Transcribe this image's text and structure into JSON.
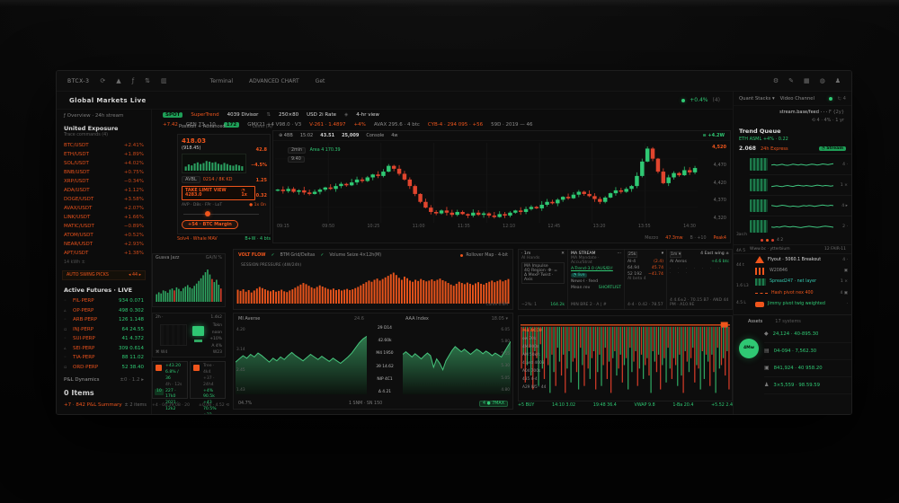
{
  "colors": {
    "accent_orange": "#ef551c",
    "accent_green": "#2fc873",
    "accent_red": "#df3f2c"
  },
  "toolbar": {
    "symbol": "BTCX-3",
    "menu": [
      "Terminal",
      "ADVANCED CHART",
      "Get"
    ]
  },
  "header": {
    "title": "Global Markets Live",
    "right_change": "+0.4%",
    "right_note": "(4)"
  },
  "ticker": {
    "row1": [
      {
        "text": "SPOT",
        "cls": "chipg"
      },
      {
        "text": "SuperTrend",
        "cls": "orange"
      },
      {
        "text": "4039 Divisor",
        "cls": "white"
      },
      {
        "text": "⇅",
        "cls": "dim"
      },
      {
        "text": "250×80",
        "cls": "white"
      },
      {
        "text": "USD 2i Rate",
        "cls": "white"
      },
      {
        "text": "◈",
        "cls": "dim"
      },
      {
        "text": "4-hr view",
        "cls": "white"
      }
    ],
    "row2": [
      {
        "text": "+7.42",
        "cls": "orange"
      },
      {
        "text": "GEN 73 · 10",
        "cls": "gray"
      },
      {
        "text": "172",
        "cls": "chipg"
      },
      {
        "text": "GMX21 +4 V98.0 · V3",
        "cls": "gray"
      },
      {
        "text": "V-261 · 1.4897",
        "cls": "orange"
      },
      {
        "text": "+4%",
        "cls": "orange"
      },
      {
        "text": "AVAX 295.6 · 4 btc",
        "cls": "gray"
      },
      {
        "text": "CYB-4 · 294 095 · +56",
        "cls": "orange"
      },
      {
        "text": "59D · 2019 — 46",
        "cls": "gray"
      }
    ]
  },
  "sidebar": {
    "subtitle": "ƒ Overview · 24h stream",
    "sec1": "United Exposure",
    "sec1_sub": "Trace commands (4)",
    "watchlist": [
      {
        "sym": "BTC/USDT",
        "val": "+2.41%"
      },
      {
        "sym": "ETH/USDT",
        "val": "+1.89%"
      },
      {
        "sym": "SOL/USDT",
        "val": "+4.02%"
      },
      {
        "sym": "BNB/USDT",
        "val": "+0.75%"
      },
      {
        "sym": "XRP/USDT",
        "val": "−0.34%"
      },
      {
        "sym": "ADA/USDT",
        "val": "+1.12%"
      },
      {
        "sym": "DOGE/USDT",
        "val": "+3.58%"
      },
      {
        "sym": "AVAX/USDT",
        "val": "+2.07%"
      },
      {
        "sym": "LINK/USDT",
        "val": "+1.66%"
      },
      {
        "sym": "MATIC/USDT",
        "val": "−0.89%"
      },
      {
        "sym": "ATOM/USDT",
        "val": "+0.52%"
      },
      {
        "sym": "NEAR/USDT",
        "val": "+2.93%"
      },
      {
        "sym": "APT/USDT",
        "val": "+1.38%"
      }
    ],
    "micro": "14 kWh ±",
    "banner_l": "AUTO SWING PICKS",
    "banner_r": "◂ 44 ▸",
    "sec2": "Active Futures · LIVE",
    "futures": [
      {
        "ico": "◦",
        "sym": "FIL·PERP",
        "val": "934 0.071"
      },
      {
        "ico": "▵",
        "sym": "OP·PERP",
        "val": "498 0.302"
      },
      {
        "ico": "◦",
        "sym": "ARB·PERP",
        "val": "126 1.148"
      },
      {
        "ico": "▫",
        "sym": "INJ·PERP",
        "val": "64 24.55"
      },
      {
        "ico": "◦",
        "sym": "SUI·PERP",
        "val": "41 4.372"
      },
      {
        "ico": "▵",
        "sym": "SEI·PERP",
        "val": "309 0.614"
      },
      {
        "ico": "◦",
        "sym": "TIA·PERP",
        "val": "88 11.02"
      },
      {
        "ico": "▫",
        "sym": "ORD·PERP",
        "val": "52 38.40"
      }
    ],
    "pl_label": "P&L Dynamics",
    "pl_right": "±0 · 1.2 ▸",
    "zero": "0 Items",
    "foot_l": "+7 · 842 P&L Summary",
    "foot_r": "± 2 items"
  },
  "order": {
    "title": "Position + Advanced",
    "title_r": "· Level (A)",
    "price": "418.03",
    "price_sub": "(918.45)",
    "s1": "42.8",
    "s2": "−4.5%",
    "s3": "1.25",
    "s4": "0.32",
    "avbl_chip": "AVBL",
    "avbl": "0214 / 8K KD",
    "limit": "TAKE LIMIT VIEW 4283.0",
    "limit_r": "◔ 1x",
    "ticks": "AVP · D8s · FPr · LoT",
    "lev": "● 1x On",
    "submit": "+54 · BTC Margin",
    "foot_l": "Solv4 · Whale MAV",
    "foot_r": "B+W · 4 bts"
  },
  "chart": {
    "t1": "⊕ 4BB",
    "t2": "15:02",
    "t3": "43.51",
    "t4": "25,009",
    "t5": "Console",
    "t6": "4w",
    "badge": "≡ +4.2W",
    "chip1": "2min",
    "chip2": "9:40",
    "note": "Area 4 170.39",
    "ylabels": [
      "4,520",
      "4,470",
      "4,420",
      "4,370",
      "4,320"
    ],
    "xlabels": [
      "09:15",
      "09:50",
      "10:25",
      "11:00",
      "11:35",
      "12:10",
      "12:45",
      "13:20",
      "13:55",
      "14:30"
    ],
    "footer": [
      {
        "t": "Mezzo",
        "c": "dim"
      },
      {
        "t": "47.3mw",
        "c": "orange"
      },
      {
        "t": "B · +10",
        "c": "dim"
      },
      {
        "t": "Peak4",
        "c": "orange"
      }
    ]
  },
  "volume": {
    "title": "VOLT FLOW",
    "m1": "BTM Grid/Deltas",
    "m2": "Volume Seize 4×12h(M)",
    "chk": "✓",
    "right": "Rollover Map · 4-bit",
    "label": "SESSION PRESSURE (4W/24h)",
    "corner": "Cume 0.8M"
  },
  "mini": {
    "breadth_t": "Guava Jazz",
    "breadth_r": "GA/N %",
    "node": {
      "tl": "2h ·",
      "tr": "1.4k2",
      "r1": "Tokn",
      "r2": "noon",
      "r3": "+10%",
      "r4": "A 4%",
      "bl": "⌘ W4",
      "br": "W23"
    },
    "card1": {
      "badge": "10",
      "lines": [
        {
          "t": "+43.20",
          "c": "green"
        },
        {
          "t": "6.8% / 36",
          "c": "green"
        },
        {
          "t": "4h · 12s",
          "c": "dim"
        },
        {
          "t": "227 · 17k0",
          "c": "green"
        },
        {
          "t": "2021 · 12k2",
          "c": "green"
        }
      ]
    },
    "card2": {
      "lines": [
        {
          "t": "Tree · 4k4",
          "c": "dim"
        },
        {
          "t": "+37 · 24h4",
          "c": "dim"
        },
        {
          "t": "+4% 90.5k",
          "c": "green"
        },
        {
          "t": "+43 70.5%",
          "c": "green"
        },
        {
          "t": "+22 94.3k",
          "c": "green"
        }
      ]
    },
    "foot_l": "+4 · 04:39:08 · 20",
    "foot_r": "±0.08 · 4.52 ⟲"
  },
  "tables": {
    "p1": {
      "tab": "· 1m",
      "close": "✕",
      "label": "AI Hands",
      "r1": "MA Impulse",
      "r2": "4Q Region ·Φ· =",
      "r3": "Δ MexP Twist · Axis",
      "foot_l": "−2%: 1",
      "foot_r": "164.2k"
    },
    "p2": {
      "title": "MA STREAM",
      "menu": "⋯",
      "sub": "MA Mandate · Accu/Strat",
      "link": "A-Trend-3.0 (AUS/B)!",
      "chip": "◔ live",
      "r3": "News-I · feed",
      "r4": "Mean rev",
      "r4r": "SHORTLIST",
      "foot": "MIN BRE 2 · A | #"
    },
    "p3": {
      "head": "25k",
      "caret": "▾",
      "rows": [
        {
          "a": "AI-4",
          "b": "(2.4)"
        },
        {
          "a": "64.94",
          "b": "45.74"
        },
        {
          "a": "52 192",
          "b": "−41.74"
        }
      ],
      "sub": "AI beta 4",
      "foot": "4-4 · 0.42 · 78.57"
    },
    "p4": {
      "sel": "1m ▾",
      "head_r": "4 East wing ±",
      "r1r": "+4.6 btc",
      "label": "AI Aeros",
      "dots": "· · · · · · · · · ·",
      "foot": "4 4.6±2 · 70.15 B7 · AND 44 PM · A10.9E"
    }
  },
  "flow": {
    "legend": [
      "M4 ACCU",
      "ow 70k",
      "4M 900s",
      "AM 50k/s",
      "4 and 4003",
      "A04 700s",
      "435 4-4",
      "A29 W5 · 44"
    ],
    "footer": [
      "+5 BUY",
      "14:10 3.02",
      "19:48 36.4",
      "VWAP 9.8",
      "1-Ba 20.4",
      "+5.52 2.4"
    ]
  },
  "green": {
    "l_title": "MI Averse",
    "l_right": "24.6",
    "l_y": [
      "4.20",
      "3.14",
      "2.45",
      "1.43"
    ],
    "rail": [
      "29 D14",
      "42.60k",
      "M4 1950",
      "39 14.62",
      "NIP 4C1",
      "Δ 4.21"
    ],
    "r_title": "AAA Index",
    "r_right": "18.05 ▾",
    "r_y": [
      "6.05",
      "5.80",
      "5.55",
      "5.30",
      "5.05",
      "4.80"
    ],
    "foot_l": "04.7%",
    "foot_m": "1 SNM · SN 150",
    "foot_badge": "4 ● 7MAX"
  },
  "rightbar": {
    "menu": "Quant Stacks ▾",
    "link": "Video Channel",
    "end": "t; 4",
    "meta1": "stream.base/feed · · ·",
    "meta1b": "F {2y}",
    "meta2": "⟲ 4 · 4%",
    "meta2b": "· 1 yr",
    "sec": "Trend Queue",
    "sec_sub": "ETH ASML +4% · 0.22",
    "stat_num": "2.068",
    "stat_label": "24h Express",
    "stat_chip": "◔ Stream",
    "streams": [
      {
        "r": "4 ·"
      },
      {
        "r": "1 ×"
      },
      {
        "r": "4 ▸"
      },
      {
        "r": "2 ·"
      }
    ],
    "dots_txt": "4 2",
    "divider_l": "Www.bc · ytterbium",
    "divider_r": "12 FAIR-11",
    "feeds": [
      {
        "thumb": "th-tri",
        "t": "Flyout · 5060.1 Breakout",
        "tc": "white",
        "r": "4 ·"
      },
      {
        "thumb": "th-bars",
        "t": "W20846",
        "tc": "gray",
        "r": "▣"
      },
      {
        "thumb": "th-pix",
        "t": "Spread247 · net layer",
        "tc": "teal",
        "r": "1 ×"
      },
      {
        "thumb": "th-dash",
        "t": "Hash pivot nex 400",
        "tc": "orange",
        "r": "4 ▣"
      },
      {
        "thumb": "th-blob",
        "t": "Jimmy pivot twig weighted",
        "tc": "green",
        "r": "·"
      }
    ],
    "rail": [
      "44 t",
      "1.6 L3",
      "4.5 L",
      "4A 5",
      "3as:h"
    ],
    "acct_l": "Assets",
    "acct_r": "17 systems",
    "avatar": "4Mw",
    "acct_rows": [
      {
        "i": "◆",
        "t": "24,124 · 40-895.30"
      },
      {
        "i": "▤",
        "t": "04-094 · 7,562.30"
      },
      {
        "i": "▣",
        "t": "841,924 · 40 958.20"
      },
      {
        "i": "♟",
        "t": "3×5,559 · 98.59.59"
      }
    ]
  },
  "chart_data": [
    {
      "id": "candles",
      "type": "candlestick",
      "title": "BTC intraday price",
      "closes": [
        4402,
        4398,
        4404,
        4396,
        4400,
        4394,
        4390,
        4396,
        4402,
        4408,
        4404,
        4412,
        4418,
        4414,
        4422,
        4430,
        4426,
        4436,
        4444,
        4440,
        4452,
        4468,
        4460,
        4446,
        4430,
        4412,
        4390,
        4368,
        4352,
        4340,
        4336,
        4344,
        4338,
        4332,
        4340,
        4334,
        4330,
        4338,
        4332,
        4336,
        4330,
        4326,
        4334,
        4330,
        4338,
        4344,
        4340,
        4348,
        4354,
        4350,
        4360,
        4368,
        4364,
        4374,
        4382,
        4378,
        4388,
        4396,
        4390,
        4384,
        4376,
        4368,
        4380,
        4392,
        4400,
        4396,
        4404,
        4412,
        4440,
        4480,
        4516,
        4488,
        4452,
        4420,
        4436,
        4448,
        4442,
        4456,
        4450,
        4462
      ]
    },
    {
      "id": "vol",
      "type": "bar",
      "color": "#e8541c",
      "max": 100,
      "values": [
        35,
        32,
        36,
        30,
        34,
        28,
        33,
        38,
        42,
        39,
        36,
        33,
        31,
        34,
        30,
        32,
        35,
        31,
        29,
        33,
        36,
        40,
        44,
        48,
        52,
        49,
        45,
        41,
        38,
        42,
        46,
        43,
        40,
        37,
        35,
        38,
        34,
        36,
        33,
        35,
        37,
        34,
        36,
        39,
        42,
        46,
        50,
        54,
        58,
        55,
        60,
        63,
        58,
        62,
        66,
        70,
        74,
        78,
        72,
        65,
        60,
        68,
        64,
        58,
        55,
        60,
        57,
        62,
        59,
        56,
        58,
        61,
        57,
        60,
        63,
        59,
        56,
        52,
        48,
        45,
        50,
        55,
        52,
        49,
        53,
        50,
        47,
        51,
        54,
        50,
        48,
        52,
        55,
        58,
        54,
        57,
        60,
        56,
        59,
        62
      ]
    },
    {
      "id": "flowbars",
      "type": "signed",
      "values": [
        -60,
        40,
        -80,
        55,
        -30,
        70,
        -90,
        35,
        -45,
        85,
        -25,
        60,
        -75,
        45,
        -55,
        95,
        -40,
        65,
        -85,
        30,
        50,
        -70,
        40,
        -95,
        60,
        -35,
        80,
        -50,
        45,
        -65,
        90,
        -30,
        55,
        -85,
        40,
        -60,
        75,
        -45,
        35,
        -90,
        65,
        -40,
        85,
        -55,
        30,
        -75,
        50,
        -95,
        45,
        -35,
        70,
        -60,
        40,
        -80,
        55,
        -45,
        90,
        -30,
        65,
        -50,
        35,
        -85,
        60,
        -40,
        75,
        -55,
        45,
        -70,
        95,
        -35,
        50,
        -65,
        40,
        -90,
        55,
        -45,
        80,
        -30,
        60,
        -75,
        45,
        -55,
        85,
        -40,
        70,
        -95,
        35,
        -50,
        65,
        -45,
        30,
        -80,
        55,
        -60,
        90,
        -35,
        75,
        -40,
        50,
        -85,
        40,
        -65,
        95,
        -30,
        60,
        -55,
        45,
        -70,
        35,
        -90
      ]
    },
    {
      "id": "areaL",
      "type": "area",
      "values": [
        0.5,
        0.55,
        0.6,
        0.56,
        0.62,
        0.58,
        0.64,
        0.6,
        0.55,
        0.5,
        0.56,
        0.52,
        0.58,
        0.54,
        0.6,
        0.65,
        0.6,
        0.56,
        0.52,
        0.57,
        0.62,
        0.58,
        0.54,
        0.59,
        0.55,
        0.51,
        0.56,
        0.52,
        0.48,
        0.53,
        0.58,
        0.64,
        0.72,
        0.8,
        0.86,
        0.9
      ]
    },
    {
      "id": "areaR",
      "type": "area",
      "values": [
        0.62,
        0.66,
        0.62,
        0.58,
        0.63,
        0.59,
        0.55,
        0.6,
        0.64,
        0.6,
        0.42,
        0.55,
        0.48,
        0.38,
        0.52,
        0.6,
        0.68,
        0.74,
        0.7,
        0.66,
        0.7,
        0.66,
        0.62,
        0.66,
        0.7,
        0.67,
        0.63,
        0.67,
        0.64,
        0.6,
        0.64,
        0.61,
        0.58,
        0.66,
        0.74,
        0.82
      ]
    },
    {
      "id": "breadth",
      "type": "bar",
      "color": "#2fa862",
      "max": 100,
      "red": [
        8,
        25,
        29
      ],
      "values": [
        20,
        25,
        22,
        30,
        28,
        24,
        32,
        35,
        30,
        38,
        34,
        28,
        36,
        40,
        44,
        38,
        35,
        42,
        48,
        55,
        62,
        70,
        78,
        85,
        72,
        60,
        52,
        58,
        45,
        35
      ]
    },
    {
      "id": "orderbars",
      "type": "bar",
      "color": "#2a9e5f",
      "max": 100,
      "values": [
        30,
        45,
        38,
        52,
        60,
        48,
        55,
        70,
        65,
        58,
        62,
        50,
        44,
        56,
        48,
        40,
        36,
        44,
        38,
        32
      ]
    },
    {
      "id": "sp1",
      "type": "line",
      "values": [
        0.5,
        0.55,
        0.48,
        0.52,
        0.58,
        0.5,
        0.46,
        0.52,
        0.6,
        0.55,
        0.5,
        0.57,
        0.52,
        0.48,
        0.54,
        0.6,
        0.56,
        0.5,
        0.55,
        0.62,
        0.58,
        0.54,
        0.6,
        0.64
      ]
    },
    {
      "id": "sp2",
      "type": "line",
      "values": [
        0.4,
        0.45,
        0.5,
        0.44,
        0.4,
        0.48,
        0.52,
        0.46,
        0.42,
        0.5,
        0.55,
        0.5,
        0.46,
        0.52,
        0.48,
        0.44,
        0.5,
        0.56,
        0.52,
        0.47,
        0.53,
        0.5,
        0.45,
        0.5
      ]
    },
    {
      "id": "sp3",
      "type": "line",
      "values": [
        0.6,
        0.55,
        0.5,
        0.56,
        0.62,
        0.58,
        0.52,
        0.48,
        0.54,
        0.5,
        0.46,
        0.52,
        0.58,
        0.54,
        0.6,
        0.56,
        0.5,
        0.55,
        0.6,
        0.65,
        0.6,
        0.56,
        0.62,
        0.58
      ]
    },
    {
      "id": "sp4",
      "type": "line",
      "values": [
        0.5,
        0.46,
        0.52,
        0.48,
        0.55,
        0.6,
        0.54,
        0.5,
        0.56,
        0.52,
        0.48,
        0.44,
        0.5,
        0.54,
        0.58,
        0.54,
        0.5,
        0.46,
        0.5,
        0.56,
        0.6,
        0.56,
        0.52,
        0.48
      ]
    }
  ]
}
